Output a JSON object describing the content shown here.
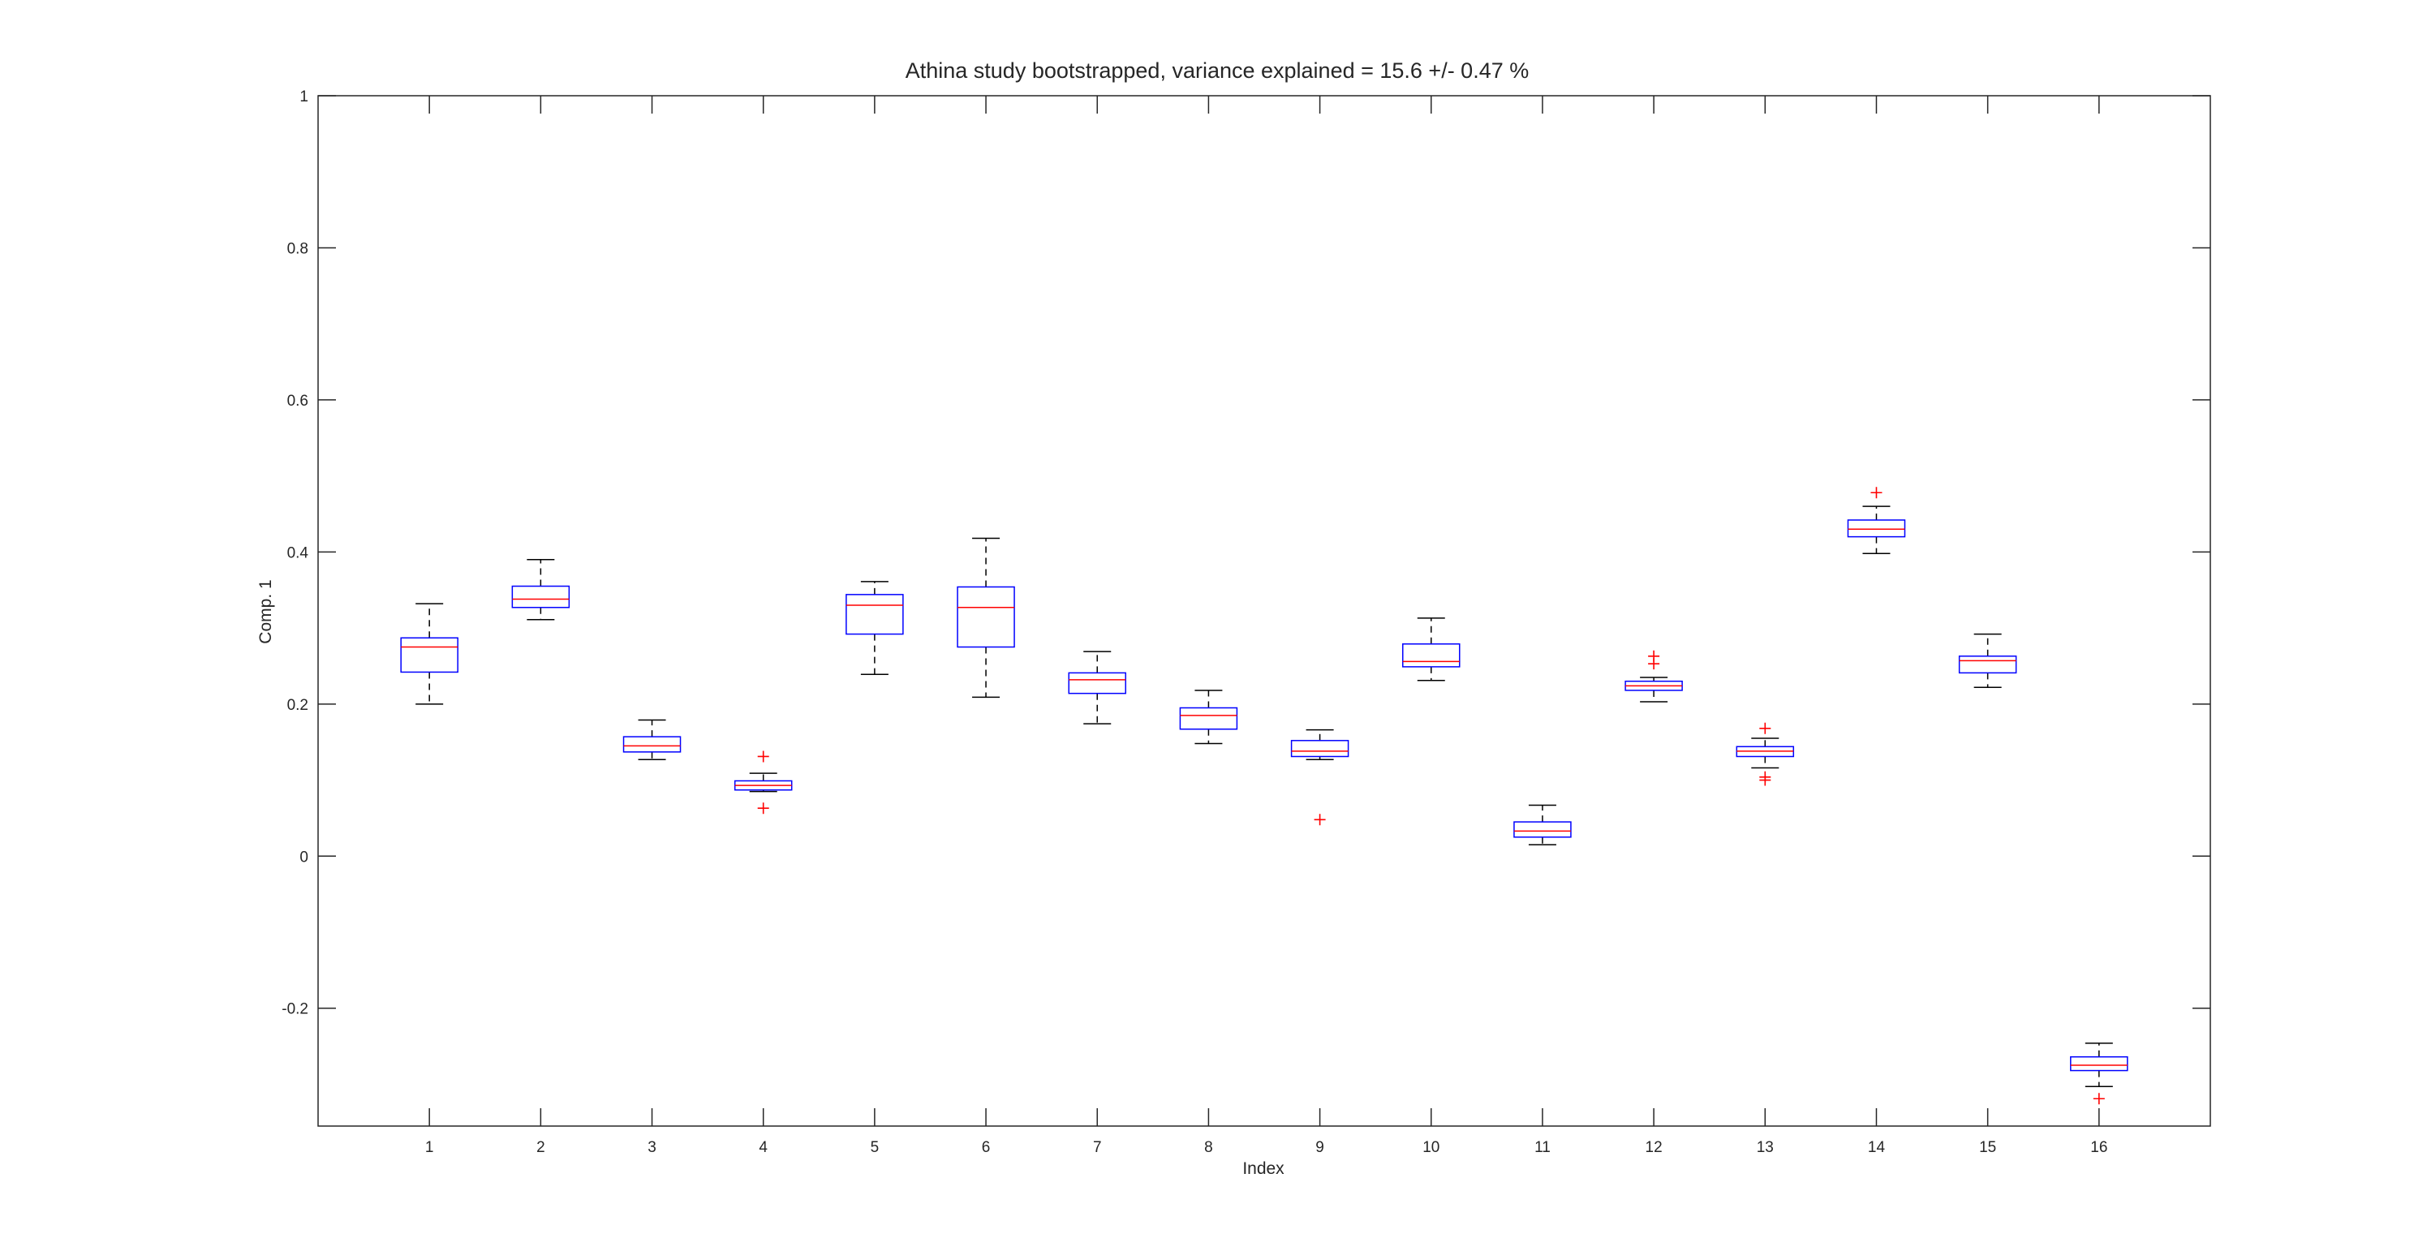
{
  "figure": {
    "background": "#ffffff"
  },
  "chart_data": {
    "type": "boxplot",
    "title": "Athina study bootstrapped, variance explained = 15.6 +/- 0.47 %",
    "xlabel": "Index",
    "ylabel": "Comp. 1",
    "xlim": [
      0,
      17
    ],
    "ylim": [
      -0.355,
      1
    ],
    "xticks": [
      1,
      2,
      3,
      4,
      5,
      6,
      7,
      8,
      9,
      10,
      11,
      12,
      13,
      14,
      15,
      16
    ],
    "xtick_labels": [
      "1",
      "2",
      "3",
      "4",
      "5",
      "6",
      "7",
      "8",
      "9",
      "10",
      "11",
      "12",
      "13",
      "14",
      "15",
      "16"
    ],
    "yticks": [
      -0.2,
      0,
      0.2,
      0.4,
      0.6,
      0.8,
      1
    ],
    "ytick_labels": [
      "-0.2",
      "0",
      "0.2",
      "0.4",
      "0.6",
      "0.8",
      "1"
    ],
    "grid": false,
    "legend": "none",
    "colors": {
      "box": "#0000ff",
      "median": "#ff0000",
      "whisker": "#000000",
      "outlier": "#ff0000",
      "axis": "#262626"
    },
    "boxes": [
      {
        "index": 1,
        "low": 0.2,
        "q1": 0.242,
        "median": 0.275,
        "q3": 0.287,
        "high": 0.332,
        "outliers": []
      },
      {
        "index": 2,
        "low": 0.311,
        "q1": 0.327,
        "median": 0.338,
        "q3": 0.355,
        "high": 0.39,
        "outliers": []
      },
      {
        "index": 3,
        "low": 0.127,
        "q1": 0.137,
        "median": 0.145,
        "q3": 0.157,
        "high": 0.179,
        "outliers": []
      },
      {
        "index": 4,
        "low": 0.085,
        "q1": 0.087,
        "median": 0.093,
        "q3": 0.099,
        "high": 0.109,
        "outliers": [
          0.131,
          0.063
        ]
      },
      {
        "index": 5,
        "low": 0.239,
        "q1": 0.292,
        "median": 0.33,
        "q3": 0.344,
        "high": 0.361,
        "outliers": []
      },
      {
        "index": 6,
        "low": 0.209,
        "q1": 0.275,
        "median": 0.327,
        "q3": 0.354,
        "high": 0.418,
        "outliers": []
      },
      {
        "index": 7,
        "low": 0.174,
        "q1": 0.214,
        "median": 0.232,
        "q3": 0.241,
        "high": 0.269,
        "outliers": []
      },
      {
        "index": 8,
        "low": 0.148,
        "q1": 0.167,
        "median": 0.185,
        "q3": 0.195,
        "high": 0.218,
        "outliers": []
      },
      {
        "index": 9,
        "low": 0.127,
        "q1": 0.131,
        "median": 0.138,
        "q3": 0.152,
        "high": 0.166,
        "outliers": [
          0.048
        ]
      },
      {
        "index": 10,
        "low": 0.231,
        "q1": 0.249,
        "median": 0.256,
        "q3": 0.279,
        "high": 0.313,
        "outliers": []
      },
      {
        "index": 11,
        "low": 0.015,
        "q1": 0.025,
        "median": 0.033,
        "q3": 0.045,
        "high": 0.067,
        "outliers": []
      },
      {
        "index": 12,
        "low": 0.203,
        "q1": 0.218,
        "median": 0.224,
        "q3": 0.23,
        "high": 0.235,
        "outliers": [
          0.263,
          0.253
        ]
      },
      {
        "index": 13,
        "low": 0.116,
        "q1": 0.131,
        "median": 0.138,
        "q3": 0.144,
        "high": 0.155,
        "outliers": [
          0.168,
          0.104,
          0.1
        ]
      },
      {
        "index": 14,
        "low": 0.398,
        "q1": 0.42,
        "median": 0.43,
        "q3": 0.442,
        "high": 0.46,
        "outliers": [
          0.478
        ]
      },
      {
        "index": 15,
        "low": 0.222,
        "q1": 0.241,
        "median": 0.257,
        "q3": 0.263,
        "high": 0.292,
        "outliers": []
      },
      {
        "index": 16,
        "low": -0.303,
        "q1": -0.282,
        "median": -0.275,
        "q3": -0.264,
        "high": -0.246,
        "outliers": [
          -0.319
        ]
      }
    ]
  }
}
